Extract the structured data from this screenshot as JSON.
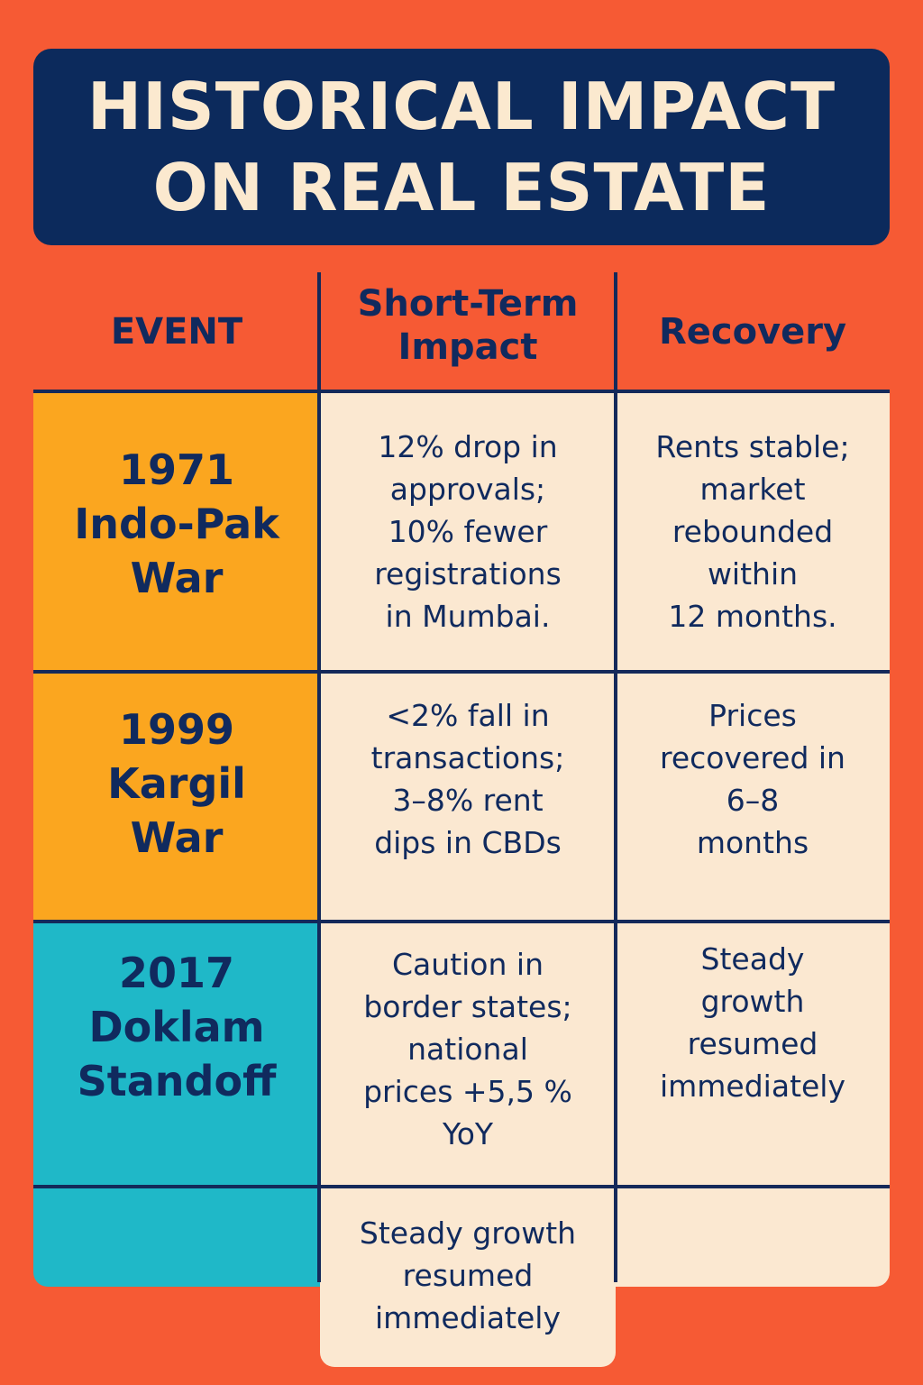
{
  "title": {
    "line1": "HISTORICAL IMPACT",
    "line2": "ON REAL ESTATE"
  },
  "table": {
    "headers": {
      "event": "EVENT",
      "short_term": [
        "Short-Term",
        "Impact"
      ],
      "recovery": "Recovery"
    },
    "rows": [
      {
        "event": [
          "1971",
          "Indo-Pak",
          "War"
        ],
        "impact": [
          "12% drop in",
          "approvals;",
          "10% fewer",
          "registrations",
          "in Mumbai."
        ],
        "recovery": [
          "Rents stable;",
          "market",
          "rebounded",
          "within",
          "12 months."
        ]
      },
      {
        "event": [
          "1999",
          "Kargil",
          "War"
        ],
        "impact": [
          "<2% fall in",
          "transactions;",
          "3–8% rent",
          "dips in CBDs"
        ],
        "recovery": [
          "Prices",
          "recovered in",
          "6–8",
          "months"
        ]
      },
      {
        "event": [
          "2017",
          "Doklam",
          "Standoff"
        ],
        "impact": [
          "Caution in",
          "border states;",
          "national",
          "prices +5,5 %",
          "YoY"
        ],
        "recovery": [
          "Steady",
          "growth",
          "resumed",
          "immediately"
        ]
      }
    ],
    "extra_row": {
      "impact": [
        "Steady growth",
        "resumed",
        "immediately"
      ]
    }
  },
  "colors": {
    "background": "#f65a34",
    "title_bg": "#0c2a5c",
    "title_text": "#fbe9cf",
    "cream": "#fbe8d1",
    "amber": "#fba61f",
    "teal": "#1fb8c8",
    "ink": "#102a5e"
  }
}
